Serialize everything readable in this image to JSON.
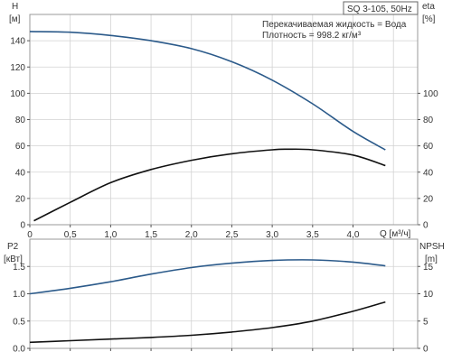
{
  "chart_data": [
    {
      "type": "line",
      "title": "SQ 3-105, 50Hz",
      "annotations": [
        "Перекачиваемая жидкость = Вода",
        "Плотность = 998.2 кг/м³"
      ],
      "xlabel": "Q [м³/ч]",
      "xlim": [
        0,
        4.8
      ],
      "x_ticks": [
        "0",
        "0,5",
        "1,0",
        "1,5",
        "2,0",
        "2,5",
        "3,0",
        "3,5",
        "4,0"
      ],
      "left_axis": {
        "label": "H",
        "unit": "[м]",
        "ylim": [
          0,
          160
        ],
        "ticks": [
          "0",
          "20",
          "40",
          "60",
          "80",
          "100",
          "120",
          "140"
        ]
      },
      "right_axis": {
        "label": "eta",
        "unit": "[%]",
        "ylim": [
          0,
          160
        ],
        "ticks": [
          "0",
          "20",
          "40",
          "60",
          "80",
          "100"
        ]
      },
      "grid": true,
      "series": [
        {
          "axis": "left",
          "color": "#2b5a8a",
          "x": [
            0,
            0.5,
            1.0,
            1.5,
            2.0,
            2.5,
            3.0,
            3.5,
            4.0,
            4.4
          ],
          "y": [
            147,
            146.5,
            144,
            140,
            134,
            124,
            110,
            92,
            71,
            57
          ]
        },
        {
          "axis": "right",
          "color": "#111111",
          "x": [
            0.05,
            0.5,
            1.0,
            1.5,
            2.0,
            2.5,
            3.0,
            3.2,
            3.5,
            4.0,
            4.4
          ],
          "y": [
            3,
            17,
            32,
            42,
            49,
            54,
            57,
            57.5,
            57,
            53,
            45
          ]
        }
      ]
    },
    {
      "type": "line",
      "xlim": [
        0,
        4.8
      ],
      "left_axis": {
        "label": "P2",
        "unit": "[кВт]",
        "ylim": [
          0,
          2.0
        ],
        "ticks": [
          "0.0",
          "0.5",
          "1.0",
          "1.5"
        ]
      },
      "right_axis": {
        "label": "NPSH",
        "unit": "[m]",
        "ylim": [
          0,
          20
        ],
        "ticks": [
          "0",
          "5",
          "10",
          "15"
        ]
      },
      "grid": true,
      "series": [
        {
          "axis": "left",
          "color": "#2b5a8a",
          "x": [
            0,
            0.5,
            1.0,
            1.5,
            2.0,
            2.5,
            3.0,
            3.5,
            4.0,
            4.4
          ],
          "y": [
            1.0,
            1.1,
            1.22,
            1.36,
            1.48,
            1.56,
            1.61,
            1.62,
            1.58,
            1.51
          ]
        },
        {
          "axis": "right",
          "color": "#111111",
          "x": [
            0,
            0.5,
            1.0,
            1.5,
            2.0,
            2.5,
            3.0,
            3.5,
            4.0,
            4.4
          ],
          "y": [
            1.1,
            1.4,
            1.7,
            2.0,
            2.4,
            3.0,
            3.8,
            5.0,
            6.8,
            8.5
          ]
        }
      ]
    }
  ]
}
